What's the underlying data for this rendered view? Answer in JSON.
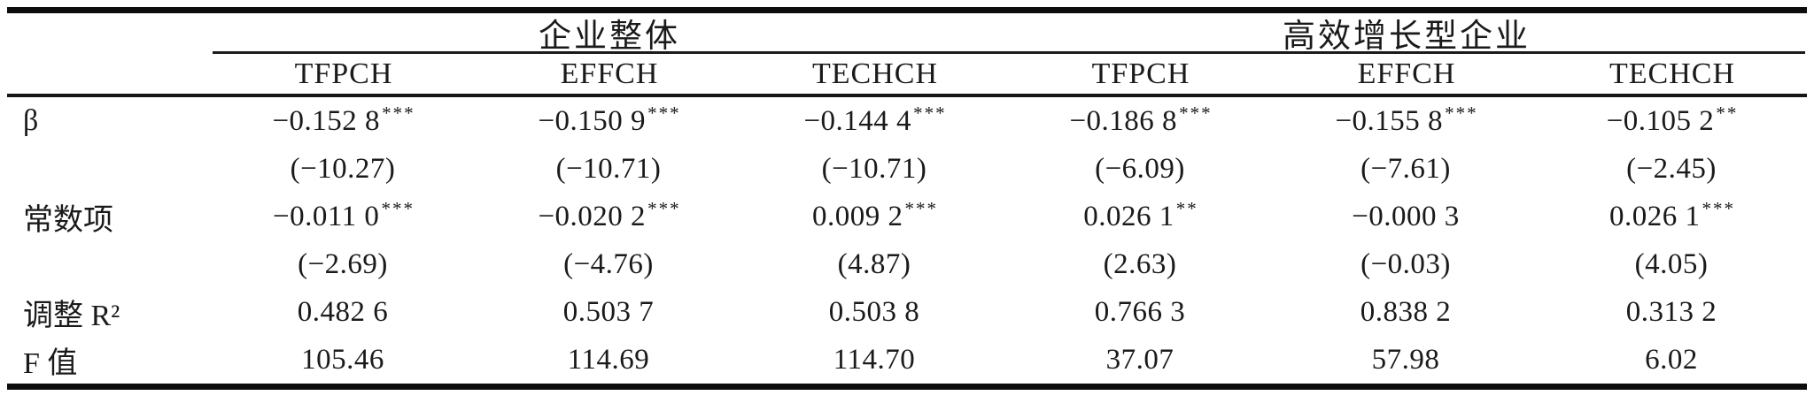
{
  "page": {
    "background": "#ffffff",
    "text_color": "#1a1a1a",
    "rule_color": "#0c0c0c"
  },
  "table": {
    "group_headers": [
      {
        "label": "企业整体"
      },
      {
        "label": "高效增长型企业"
      }
    ],
    "column_headers": [
      "TFPCH",
      "EFFCH",
      "TECHCH",
      "TFPCH",
      "EFFCH",
      "TECHCH"
    ],
    "rows": [
      {
        "label": "β",
        "cells": [
          {
            "value": "−0.152 8",
            "stars": "***"
          },
          {
            "value": "−0.150 9",
            "stars": "***"
          },
          {
            "value": "−0.144 4",
            "stars": "***"
          },
          {
            "value": "−0.186 8",
            "stars": "***"
          },
          {
            "value": "−0.155 8",
            "stars": "***"
          },
          {
            "value": "−0.105 2",
            "stars": "**"
          }
        ]
      },
      {
        "label": "",
        "cells": [
          {
            "value": "(−10.27)",
            "stars": ""
          },
          {
            "value": "(−10.71)",
            "stars": ""
          },
          {
            "value": "(−10.71)",
            "stars": ""
          },
          {
            "value": "(−6.09)",
            "stars": ""
          },
          {
            "value": "(−7.61)",
            "stars": ""
          },
          {
            "value": "(−2.45)",
            "stars": ""
          }
        ]
      },
      {
        "label": "常数项",
        "cells": [
          {
            "value": "−0.011 0",
            "stars": "***"
          },
          {
            "value": "−0.020 2",
            "stars": "***"
          },
          {
            "value": "0.009 2",
            "stars": "***"
          },
          {
            "value": "0.026 1",
            "stars": "**"
          },
          {
            "value": "−0.000 3",
            "stars": ""
          },
          {
            "value": "0.026 1",
            "stars": "***"
          }
        ]
      },
      {
        "label": "",
        "cells": [
          {
            "value": "(−2.69)",
            "stars": ""
          },
          {
            "value": "(−4.76)",
            "stars": ""
          },
          {
            "value": "(4.87)",
            "stars": ""
          },
          {
            "value": "(2.63)",
            "stars": ""
          },
          {
            "value": "(−0.03)",
            "stars": ""
          },
          {
            "value": "(4.05)",
            "stars": ""
          }
        ]
      },
      {
        "label": "调整 R²",
        "cells": [
          {
            "value": "0.482 6",
            "stars": ""
          },
          {
            "value": "0.503 7",
            "stars": ""
          },
          {
            "value": "0.503 8",
            "stars": ""
          },
          {
            "value": "0.766 3",
            "stars": ""
          },
          {
            "value": "0.838 2",
            "stars": ""
          },
          {
            "value": "0.313 2",
            "stars": ""
          }
        ]
      },
      {
        "label": "F 值",
        "cells": [
          {
            "value": "105.46",
            "stars": ""
          },
          {
            "value": "114.69",
            "stars": ""
          },
          {
            "value": "114.70",
            "stars": ""
          },
          {
            "value": "37.07",
            "stars": ""
          },
          {
            "value": "57.98",
            "stars": ""
          },
          {
            "value": "6.02",
            "stars": ""
          }
        ]
      }
    ]
  }
}
